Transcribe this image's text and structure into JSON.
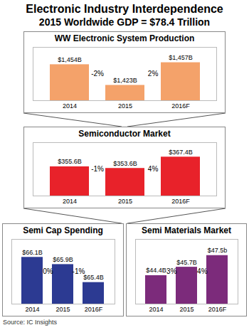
{
  "title": "Electronic Industry Interdependence",
  "subtitle": "2015 Worldwide GDP = $78.4 Trillion",
  "source": "Source: IC Insights",
  "chart_data": [
    {
      "type": "bar",
      "title": "WW Electronic System Production",
      "categories": [
        "2014",
        "2015",
        "2016F"
      ],
      "values": [
        1454,
        1423,
        1457
      ],
      "value_labels": [
        "$1,454B",
        "$1,423B",
        "$1,457B"
      ],
      "data_labels": true,
      "annotations": [
        "-2%",
        "2%"
      ],
      "color": "#f4a26a",
      "ylim": [
        1400,
        1480
      ],
      "yticks": [],
      "tick_labels": "x"
    },
    {
      "type": "bar",
      "title": "Semiconductor Market",
      "categories": [
        "2014",
        "2015",
        "2016F"
      ],
      "values": [
        355.6,
        353.6,
        367.4
      ],
      "value_labels": [
        "$355.6B",
        "$353.6B",
        "$367.4B"
      ],
      "data_labels": true,
      "annotations": [
        "-1%",
        "4%"
      ],
      "color": "#e8222a",
      "ylim": [
        320,
        385
      ],
      "yticks": [],
      "tick_labels": "x"
    },
    {
      "type": "bar",
      "title": "Semi Cap Spending",
      "categories": [
        "2014",
        "2015",
        "2016F"
      ],
      "values": [
        66.1,
        65.9,
        65.4
      ],
      "value_labels": [
        "$66.1B",
        "$65.9B",
        "$65.4B"
      ],
      "data_labels": true,
      "annotations": [
        "0%",
        "-1%"
      ],
      "color": "#2c3a92",
      "ylim": [
        64.8,
        66.6
      ],
      "yticks": [],
      "tick_labels": "x"
    },
    {
      "type": "bar",
      "title": "Semi Materials Market",
      "categories": [
        "2014",
        "2015",
        "2016F"
      ],
      "values": [
        44.4,
        45.7,
        47.5
      ],
      "value_labels": [
        "$44.4B",
        "$45.7B",
        "$47.5b"
      ],
      "data_labels": true,
      "annotations": [
        "3%",
        "4%"
      ],
      "color": "#7c2b7b",
      "ylim": [
        40,
        50
      ],
      "yticks": [],
      "tick_labels": "x"
    }
  ]
}
